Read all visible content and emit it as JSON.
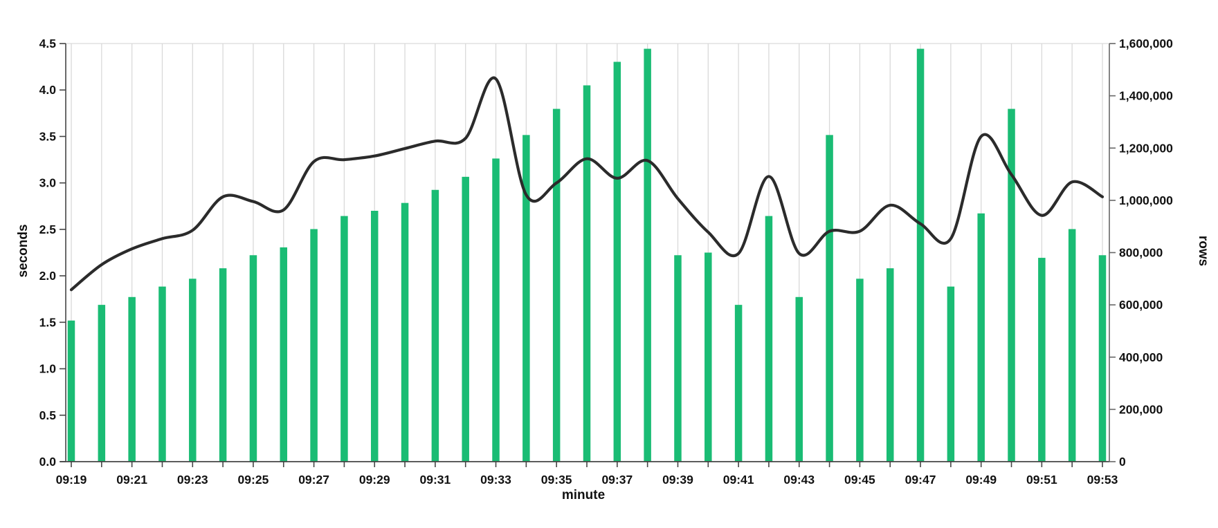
{
  "chart_data": {
    "type": "combo-bar-line",
    "title": "",
    "legend_position": "none",
    "background": "#ffffff",
    "categories": [
      "09:19",
      "09:20",
      "09:21",
      "09:22",
      "09:23",
      "09:24",
      "09:25",
      "09:26",
      "09:27",
      "09:28",
      "09:29",
      "09:30",
      "09:31",
      "09:32",
      "09:33",
      "09:34",
      "09:35",
      "09:36",
      "09:37",
      "09:38",
      "09:39",
      "09:40",
      "09:41",
      "09:42",
      "09:43",
      "09:44",
      "09:45",
      "09:46",
      "09:47",
      "09:48",
      "09:49",
      "09:50",
      "09:51",
      "09:52",
      "09:53"
    ],
    "series": [
      {
        "name": "rows",
        "type": "bar",
        "axis": "right",
        "color": "#1abc74",
        "values": [
          540000,
          600000,
          630000,
          670000,
          700000,
          740000,
          790000,
          820000,
          890000,
          940000,
          960000,
          990000,
          1040000,
          1090000,
          1160000,
          1250000,
          1350000,
          1440000,
          1530000,
          1580000,
          790000,
          800000,
          600000,
          940000,
          630000,
          1250000,
          700000,
          740000,
          1580000,
          670000,
          950000,
          1350000,
          780000,
          890000,
          790000
        ]
      },
      {
        "name": "seconds",
        "type": "line",
        "axis": "left",
        "color": "#2b2b2b",
        "values": [
          1.85,
          2.12,
          2.29,
          2.4,
          2.49,
          2.85,
          2.8,
          2.71,
          3.23,
          3.25,
          3.29,
          3.37,
          3.45,
          3.48,
          4.12,
          2.87,
          3.0,
          3.26,
          3.05,
          3.24,
          2.83,
          2.47,
          2.24,
          3.07,
          2.24,
          2.48,
          2.48,
          2.76,
          2.56,
          2.4,
          3.5,
          3.09,
          2.65,
          3.01,
          2.85
        ]
      }
    ],
    "x_axis": {
      "title": "minute",
      "tick_labels": [
        "09:19",
        "09:21",
        "09:23",
        "09:25",
        "09:27",
        "09:29",
        "09:31",
        "09:33",
        "09:35",
        "09:37",
        "09:39",
        "09:41",
        "09:43",
        "09:45",
        "09:47",
        "09:49",
        "09:51",
        "09:53"
      ]
    },
    "left_axis": {
      "title": "seconds",
      "range": [
        0,
        4.5
      ],
      "tick_step": 0.5,
      "ticks": [
        "0.0",
        "0.5",
        "1.0",
        "1.5",
        "2.0",
        "2.5",
        "3.0",
        "3.5",
        "4.0",
        "4.5"
      ]
    },
    "right_axis": {
      "title": "rows",
      "range": [
        0,
        1600000
      ],
      "tick_step": 200000,
      "ticks": [
        "0",
        "200,000",
        "400,000",
        "600,000",
        "800,000",
        "1,000,000",
        "1,200,000",
        "1,400,000",
        "1,600,000"
      ]
    },
    "grid": {
      "vertical": true,
      "horizontal": false,
      "top_border": true,
      "color": "#d9d9d9"
    }
  },
  "colors": {
    "bar": "#1abc74",
    "line": "#2b2b2b",
    "grid": "#d9d9d9",
    "axis": "#444444",
    "right_axis": "#666666",
    "text": "#111111"
  }
}
